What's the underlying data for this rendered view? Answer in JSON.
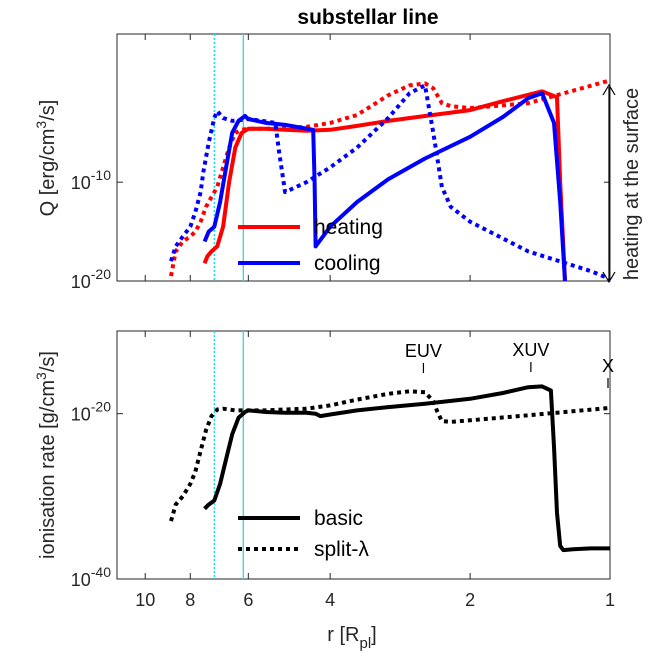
{
  "chart_data": [
    {
      "type": "line",
      "title": "substellar line",
      "ylabel": "Q [erg/cm³/s]",
      "ylabel_parts": {
        "pre": "Q [erg/cm",
        "sup": "3",
        "post": "/s]"
      },
      "xscale": "log",
      "xdir": "reverse",
      "xlim": [
        1,
        11.5
      ],
      "ylim": [
        -20,
        5
      ],
      "y_ticks": [
        -20,
        -10
      ],
      "y_tick_labels": [
        {
          "base": "10",
          "exp": "-20"
        },
        {
          "base": "10",
          "exp": "-10"
        }
      ],
      "vlines": [
        {
          "x": 7.1,
          "color": "#00e5ff",
          "style": "dotted"
        },
        {
          "x": 6.15,
          "color": "#3fd6e0",
          "style": "solid"
        }
      ],
      "right_annotation": "heating at the surface",
      "legend": {
        "placement": "lower-center",
        "entries": [
          {
            "label": "heating",
            "color": "#ff0000"
          },
          {
            "label": "cooling",
            "color": "#0000ff"
          }
        ]
      },
      "series": [
        {
          "name": "heating",
          "style": "solid",
          "color": "#ff0000",
          "x": [
            7.45,
            7.35,
            7.2,
            7.0,
            6.8,
            6.6,
            6.4,
            6.2,
            6.0,
            5.5,
            5.0,
            4.5,
            4.0,
            3.5,
            3.0,
            2.5,
            2.0,
            1.7,
            1.4,
            1.3,
            1.28,
            1.25
          ],
          "y": [
            -18.2,
            -17.5,
            -17.0,
            -16.5,
            -14.5,
            -10.0,
            -6.5,
            -5.0,
            -4.6,
            -4.6,
            -4.7,
            -4.8,
            -4.7,
            -4.3,
            -3.8,
            -3.3,
            -2.7,
            -1.8,
            -0.8,
            -1.4,
            -10.0,
            -20.0
          ]
        },
        {
          "name": "heating",
          "style": "dotted",
          "color": "#ff0000",
          "x": [
            8.8,
            8.6,
            8.3,
            8.0,
            7.8,
            7.6,
            7.4,
            7.2,
            7.0,
            6.8,
            6.6,
            6.4,
            6.2,
            6.0,
            5.5,
            5.0,
            4.5,
            4.0,
            3.5,
            3.0,
            2.7,
            2.5,
            2.4,
            2.3,
            2.2,
            2.0,
            1.5,
            1.0
          ],
          "y": [
            -19.5,
            -17.0,
            -16.0,
            -15.5,
            -15.0,
            -14.0,
            -12.5,
            -11.5,
            -10.5,
            -8.5,
            -6.5,
            -5.0,
            -4.7,
            -4.6,
            -4.6,
            -4.5,
            -4.4,
            -4.0,
            -3.2,
            -1.2,
            -0.2,
            0.0,
            -0.5,
            -2.0,
            -2.3,
            -2.5,
            -2.0,
            0.3
          ]
        },
        {
          "name": "cooling",
          "style": "solid",
          "color": "#0000ff",
          "x": [
            7.45,
            7.3,
            7.1,
            6.9,
            6.7,
            6.5,
            6.3,
            6.1,
            6.0,
            5.5,
            5.0,
            4.6,
            4.35,
            4.32,
            4.3,
            4.0,
            3.5,
            3.0,
            2.5,
            2.0,
            1.7,
            1.5,
            1.4,
            1.32,
            1.28,
            1.25
          ],
          "y": [
            -16.0,
            -15.0,
            -14.5,
            -12.0,
            -8.5,
            -5.0,
            -3.8,
            -3.3,
            -3.6,
            -4.0,
            -4.2,
            -4.5,
            -4.7,
            -10.0,
            -16.5,
            -14.5,
            -12.0,
            -9.7,
            -7.6,
            -5.4,
            -3.4,
            -1.5,
            -1.0,
            -4.0,
            -12.0,
            -20.0
          ]
        },
        {
          "name": "cooling",
          "style": "dotted",
          "color": "#0000ff",
          "x": [
            8.8,
            8.6,
            8.3,
            8.0,
            7.8,
            7.6,
            7.5,
            7.3,
            7.1,
            7.0,
            6.8,
            6.5,
            6.2,
            6.0,
            5.6,
            5.25,
            5.15,
            5.0,
            4.5,
            4.0,
            3.5,
            3.0,
            2.7,
            2.5,
            2.4,
            2.3,
            2.2,
            2.0,
            1.5,
            1.1,
            1.0
          ],
          "y": [
            -18.0,
            -16.5,
            -15.5,
            -14.5,
            -13.0,
            -11.0,
            -9.0,
            -6.0,
            -3.5,
            -2.8,
            -3.5,
            -3.8,
            -3.7,
            -3.6,
            -3.8,
            -4.0,
            -7.0,
            -11.0,
            -10.0,
            -8.5,
            -6.5,
            -3.5,
            -1.0,
            -0.2,
            -5.0,
            -10.5,
            -12.5,
            -14.0,
            -17.0,
            -19.0,
            -19.8
          ]
        }
      ]
    },
    {
      "type": "line",
      "xlabel": "r [R_pl]",
      "xlabel_parts": {
        "pre": "r [R",
        "sub": "pl",
        "post": "]"
      },
      "ylabel": "ionisation rate [g/cm³/s]",
      "ylabel_parts": {
        "pre": "ionisation rate [g/cm",
        "sup": "3",
        "post": "/s]"
      },
      "xscale": "log",
      "xdir": "reverse",
      "xlim": [
        1,
        11.5
      ],
      "ylim": [
        -40,
        -10
      ],
      "x_ticks": [
        10,
        8,
        6,
        4,
        2,
        1
      ],
      "x_tick_labels": [
        "10",
        "8",
        "6",
        "4",
        "2",
        "1"
      ],
      "y_ticks": [
        -40,
        -20
      ],
      "y_tick_labels": [
        {
          "base": "10",
          "exp": "-40"
        },
        {
          "base": "10",
          "exp": "-20"
        }
      ],
      "vlines": [
        {
          "x": 7.1,
          "color": "#00e5ff",
          "style": "dotted"
        },
        {
          "x": 6.15,
          "color": "#3fd6e0",
          "style": "solid"
        }
      ],
      "markers": [
        {
          "label": "EUV",
          "x": 2.52
        },
        {
          "label": "XUV",
          "x": 1.48
        },
        {
          "label": "X",
          "x": 1.01
        }
      ],
      "legend": {
        "placement": "lower-center",
        "entries": [
          {
            "label": "basic",
            "style": "solid"
          },
          {
            "label": "split-λ",
            "style": "dotted"
          }
        ]
      },
      "series": [
        {
          "name": "basic",
          "style": "solid",
          "color": "#000000",
          "x": [
            7.45,
            7.3,
            7.1,
            6.9,
            6.7,
            6.5,
            6.3,
            6.1,
            6.0,
            5.5,
            5.0,
            4.5,
            4.3,
            4.2,
            4.0,
            3.5,
            3.0,
            2.5,
            2.0,
            1.7,
            1.5,
            1.4,
            1.34,
            1.32,
            1.3,
            1.28,
            1.26,
            1.2,
            1.1,
            1.0
          ],
          "y": [
            -31.5,
            -31.0,
            -30.5,
            -28.5,
            -25.5,
            -22.5,
            -20.5,
            -19.8,
            -19.6,
            -19.8,
            -19.9,
            -19.9,
            -20.0,
            -20.3,
            -20.1,
            -19.6,
            -19.2,
            -18.8,
            -18.2,
            -17.5,
            -16.8,
            -16.7,
            -17.2,
            -24.0,
            -32.0,
            -36.0,
            -36.5,
            -36.4,
            -36.3,
            -36.3
          ]
        },
        {
          "name": "split-λ",
          "style": "dotted",
          "color": "#000000",
          "x": [
            8.8,
            8.6,
            8.3,
            8.0,
            7.8,
            7.6,
            7.4,
            7.2,
            7.0,
            6.8,
            6.6,
            6.4,
            6.2,
            6.0,
            5.5,
            5.0,
            4.5,
            4.0,
            3.5,
            3.0,
            2.7,
            2.5,
            2.4,
            2.35,
            2.3,
            2.2,
            2.0,
            1.5,
            1.0
          ],
          "y": [
            -33.0,
            -31.0,
            -30.0,
            -28.5,
            -27.0,
            -24.5,
            -22.0,
            -20.3,
            -19.5,
            -19.4,
            -19.5,
            -19.6,
            -19.6,
            -19.6,
            -19.6,
            -19.5,
            -19.4,
            -19.0,
            -18.3,
            -17.6,
            -17.3,
            -17.4,
            -18.5,
            -19.8,
            -20.9,
            -21.0,
            -20.8,
            -20.2,
            -19.3
          ]
        }
      ]
    }
  ]
}
